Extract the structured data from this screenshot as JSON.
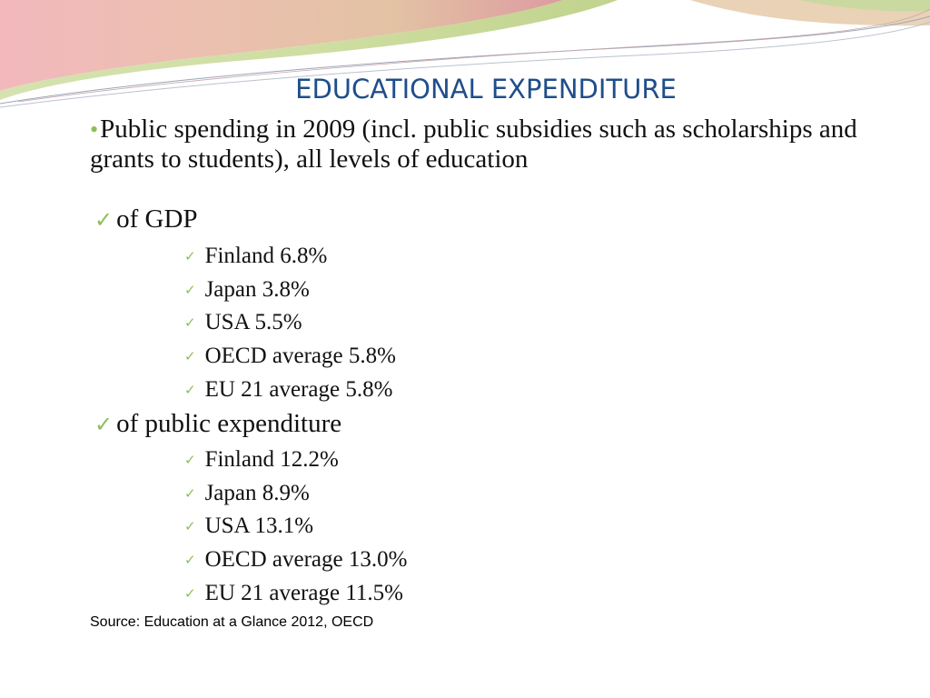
{
  "title": "EDUCATIONAL EXPENDITURE",
  "intro": {
    "bullet": "•",
    "text": "Public spending in 2009 (incl. public subsidies such as scholarships and grants to students), all levels of education"
  },
  "sections": [
    {
      "heading": "of GDP",
      "items": [
        "Finland 6.8%",
        "Japan 3.8%",
        "USA 5.5%",
        "OECD average 5.8%",
        "EU 21 average 5.8%"
      ]
    },
    {
      "heading": "of public expenditure",
      "items": [
        "Finland 12.2%",
        "Japan 8.9%",
        "USA 13.1%",
        "OECD average 13.0%",
        "EU 21 average 11.5%"
      ]
    }
  ],
  "source": "Source: Education at a Glance 2012, OECD",
  "icons": {
    "check": "checkmark-icon",
    "bullet": "bullet-dot-icon"
  },
  "colors": {
    "title": "#1f4e8a",
    "accent_green": "#8bbf5a",
    "swoosh_pink": "#e8a0a8",
    "swoosh_green": "#c9d9a0"
  }
}
